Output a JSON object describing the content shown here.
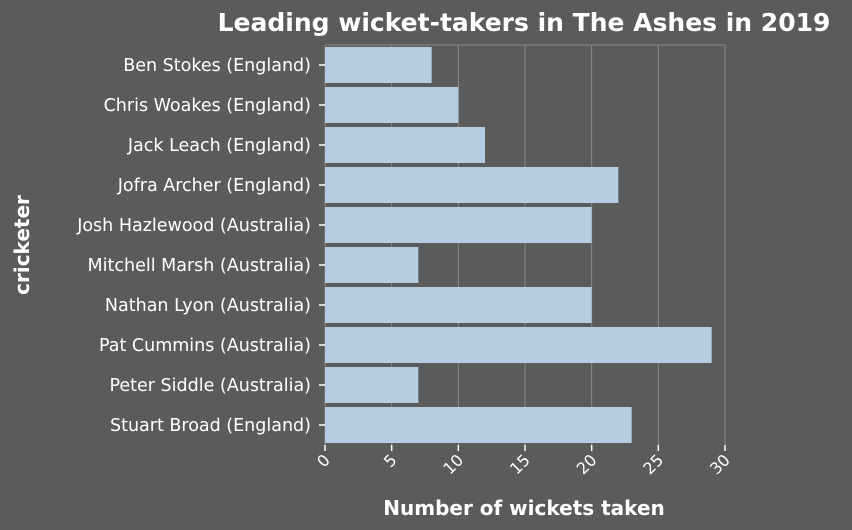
{
  "chart_data": {
    "type": "bar",
    "orientation": "horizontal",
    "title": "Leading wicket-takers in The Ashes in 2019",
    "xlabel": "Number of wickets taken",
    "ylabel": "cricketer",
    "categories": [
      "Ben Stokes  (England)",
      "Chris Woakes  (England)",
      "Jack Leach  (England)",
      "Jofra Archer  (England)",
      "Josh Hazlewood  (Australia)",
      "Mitchell Marsh (Australia)",
      "Nathan Lyon  (Australia)",
      "Pat Cummins  (Australia)",
      "Peter Siddle  (Australia)",
      "Stuart Broad  (England)"
    ],
    "values": [
      8,
      10,
      12,
      22,
      20,
      7,
      20,
      29,
      7,
      23
    ],
    "xlim": [
      0,
      30
    ],
    "xticks": [
      "0",
      "5",
      "10",
      "15",
      "20",
      "25",
      "30"
    ],
    "grid": true,
    "bar_color": "#b4cde3",
    "background_color": "#5b5b5b"
  }
}
